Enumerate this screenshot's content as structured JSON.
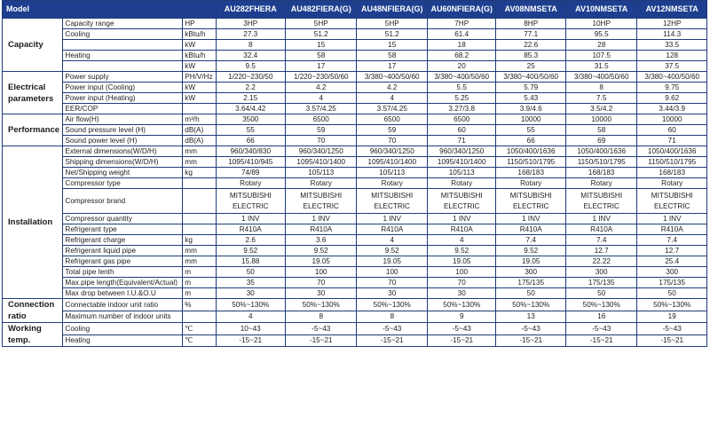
{
  "header": {
    "model_label": "Model",
    "models": [
      "AU282FHERA",
      "AU482FIERA(G)",
      "AU48NFIERA(G)",
      "AU60NFIERA(G)",
      "AV08NMSETA",
      "AV10NMSETA",
      "AV12NMSETA"
    ]
  },
  "groups": [
    {
      "category": "Capacity",
      "rows": [
        {
          "param": "Capacity range",
          "unit": "HP",
          "values": [
            "3HP",
            "5HP",
            "5HP",
            "7HP",
            "8HP",
            "10HP",
            "12HP"
          ]
        },
        {
          "param": "Cooling",
          "unit": "kBtu/h",
          "values": [
            "27.3",
            "51.2",
            "51.2",
            "61.4",
            "77.1",
            "95.5",
            "114.3"
          ]
        },
        {
          "param": "",
          "unit": "kW",
          "values": [
            "8",
            "15",
            "15",
            "18",
            "22.6",
            "28",
            "33.5"
          ]
        },
        {
          "param": "Heating",
          "unit": "kBtu/h",
          "values": [
            "32.4",
            "58",
            "58",
            "68.2",
            "85.3",
            "107.5",
            "128"
          ]
        },
        {
          "param": "",
          "unit": "kW",
          "values": [
            "9.5",
            "17",
            "17",
            "20",
            "25",
            "31.5",
            "37.5"
          ]
        }
      ]
    },
    {
      "category": "Electrical parameters",
      "rows": [
        {
          "param": "Power supply",
          "unit": "PH/V/Hz",
          "values": [
            "1/220~230/50",
            "1/220~230/50/60",
            "3/380~400/50/60",
            "3/380~400/50/60",
            "3/380~400/50/60",
            "3/380~400/50/60",
            "3/380~400/50/60"
          ]
        },
        {
          "param": "Power input (Cooling)",
          "unit": "kW",
          "values": [
            "2.2",
            "4.2",
            "4.2",
            "5.5",
            "5.79",
            "8",
            "9.75"
          ]
        },
        {
          "param": "Power input (Heating)",
          "unit": "kW",
          "values": [
            "2.15",
            "4",
            "4",
            "5.25",
            "5.43",
            "7.5",
            "9.62"
          ]
        },
        {
          "param": "EER/COP",
          "unit": "",
          "values": [
            "3.64/4.42",
            "3.57/4.25",
            "3.57/4.25",
            "3.27/3.8",
            "3.9/4.6",
            "3.5/4.2",
            "3.44/3.9"
          ]
        }
      ]
    },
    {
      "category": "Performance",
      "rows": [
        {
          "param": "Air flow(H)",
          "unit": "m³/h",
          "values": [
            "3500",
            "6500",
            "6500",
            "6500",
            "10000",
            "10000",
            "10000"
          ]
        },
        {
          "param": "Sound pressure level (H)",
          "unit": "dB(A)",
          "values": [
            "55",
            "59",
            "59",
            "60",
            "55",
            "58",
            "60"
          ]
        },
        {
          "param": "Sound power level (H)",
          "unit": "dB(A)",
          "values": [
            "66",
            "70",
            "70",
            "71",
            "66",
            "69",
            "71"
          ]
        }
      ]
    },
    {
      "category": "Installation",
      "rows": [
        {
          "param": "External dimensions(W/D/H)",
          "unit": "mm",
          "values": [
            "960/340/830",
            "960/340/1250",
            "960/340/1250",
            "960/340/1250",
            "1050/400/1636",
            "1050/400/1636",
            "1050/400/1636"
          ]
        },
        {
          "param": "Shipping dimensions(W/D/H)",
          "unit": "mm",
          "values": [
            "1095/410/945",
            "1095/410/1400",
            "1095/410/1400",
            "1095/410/1400",
            "1150/510/1795",
            "1150/510/1795",
            "1150/510/1795"
          ]
        },
        {
          "param": "Net/Shipping weight",
          "unit": "kg",
          "values": [
            "74/89",
            "105/113",
            "105/113",
            "105/113",
            "168/183",
            "168/183",
            "168/183"
          ]
        },
        {
          "param": "Compressor type",
          "unit": "",
          "values": [
            "Rotary",
            "Rotary",
            "Rotary",
            "Rotary",
            "Rotary",
            "Rotary",
            "Rotary"
          ]
        },
        {
          "param": "Compressor brand",
          "unit": "",
          "tall": true,
          "values": [
            "MITSUBISHI ELECTRIC",
            "MITSUBISHI ELECTRIC",
            "MITSUBISHI ELECTRIC",
            "MITSUBISHI ELECTRIC",
            "MITSUBISHI ELECTRIC",
            "MITSUBISHI ELECTRIC",
            "MITSUBISHI ELECTRIC"
          ]
        },
        {
          "param": "Compressor quantity",
          "unit": "",
          "values": [
            "1 INV",
            "1 INV",
            "1 INV",
            "1 INV",
            "1 INV",
            "1 INV",
            "1 INV"
          ]
        },
        {
          "param": "Refrigerant type",
          "unit": "",
          "values": [
            "R410A",
            "R410A",
            "R410A",
            "R410A",
            "R410A",
            "R410A",
            "R410A"
          ]
        },
        {
          "param": "Refrigerant charge",
          "unit": "kg",
          "values": [
            "2.6",
            "3.6",
            "4",
            "4",
            "7.4",
            "7.4",
            "7.4"
          ]
        },
        {
          "param": "Refrigerant liquid pipe",
          "unit": "mm",
          "values": [
            "9.52",
            "9.52",
            "9.52",
            "9.52",
            "9.52",
            "12.7",
            "12.7"
          ]
        },
        {
          "param": "Refrigerant gas pipe",
          "unit": "mm",
          "values": [
            "15.88",
            "19.05",
            "19.05",
            "19.05",
            "19.05",
            "22.22",
            "25.4"
          ]
        },
        {
          "param": "Total pipe lenth",
          "unit": "m",
          "values": [
            "50",
            "100",
            "100",
            "100",
            "300",
            "300",
            "300"
          ]
        },
        {
          "param": "Max.pipe length(Equivalent/Actual)",
          "unit": "m",
          "values": [
            "35",
            "70",
            "70",
            "70",
            "175/135",
            "175/135",
            "175/135"
          ]
        },
        {
          "param": "Max drop between I.U.&O.U",
          "unit": "m",
          "values": [
            "30",
            "30",
            "30",
            "30",
            "50",
            "50",
            "50"
          ]
        }
      ]
    },
    {
      "category": "Connection ratio",
      "rows": [
        {
          "param": "Connectable indoor unit ratio",
          "unit": "%",
          "values": [
            "50%~130%",
            "50%~130%",
            "50%~130%",
            "50%~130%",
            "50%~130%",
            "50%~130%",
            "50%~130%"
          ]
        },
        {
          "param": "Maximum number of indoor units",
          "unit": "",
          "values": [
            "4",
            "8",
            "8",
            "9",
            "13",
            "16",
            "19"
          ]
        }
      ]
    },
    {
      "category": "Working temp.",
      "rows": [
        {
          "param": "Cooling",
          "unit": "℃",
          "values": [
            "10~43",
            "-5~43",
            "-5~43",
            "-5~43",
            "-5~43",
            "-5~43",
            "-5~43"
          ]
        },
        {
          "param": "Heating",
          "unit": "℃",
          "values": [
            "-15~21",
            "-15~21",
            "-15~21",
            "-15~21",
            "-15~21",
            "-15~21",
            "-15~21"
          ]
        }
      ]
    }
  ]
}
